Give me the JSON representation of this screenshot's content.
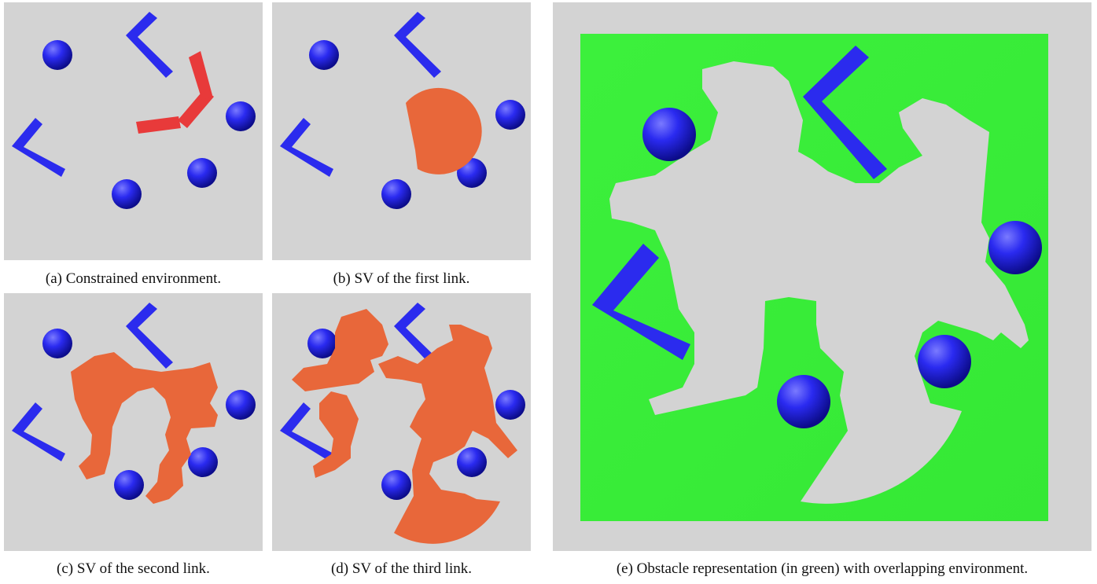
{
  "figure": {
    "panels": [
      {
        "id": "a",
        "caption": "(a) Constrained environment.",
        "content": "environment-with-robot"
      },
      {
        "id": "b",
        "caption": "(b) SV of the first link.",
        "content": "swept-volume-link-1"
      },
      {
        "id": "c",
        "caption": "(c) SV of the second link.",
        "content": "swept-volume-link-2"
      },
      {
        "id": "d",
        "caption": "(d) SV of the third link.",
        "content": "swept-volume-link-3"
      },
      {
        "id": "e",
        "caption": "(e) Obstacle representation (in green) with overlapping environment.",
        "content": "obstacle-representation"
      }
    ],
    "colors": {
      "background_gray": "#d3d3d3",
      "obstacle_blue": "#2525f0",
      "robot_red": "#e83a3a",
      "swept_volume_orange": "#e8673a",
      "obstacle_region_green": "#3cf03c"
    }
  }
}
